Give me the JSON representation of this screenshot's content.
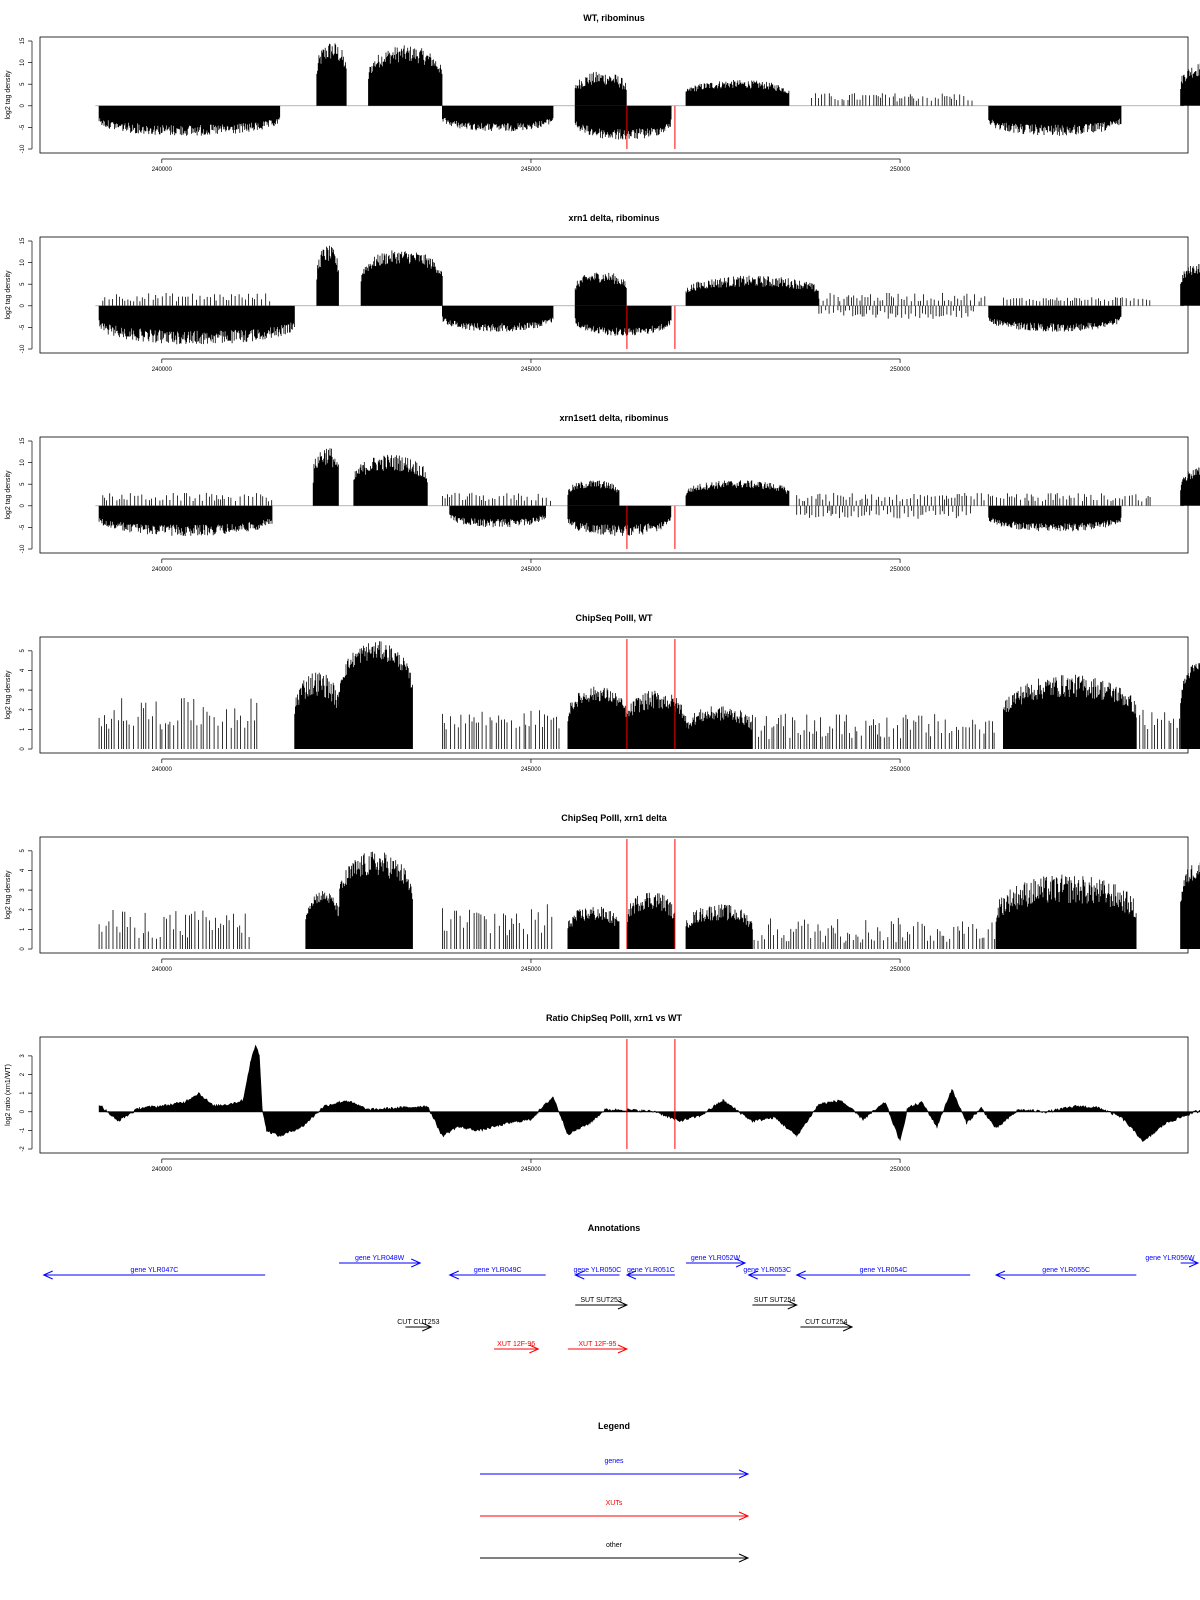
{
  "chart_data": [
    {
      "type": "bar",
      "title": "WT, ribominus",
      "ylabel": "log2 tag density",
      "xlim": [
        238350,
        253900
      ],
      "ylim": [
        -10,
        15
      ],
      "yticks": [
        -10,
        -5,
        0,
        5,
        10,
        15
      ],
      "xticks": [
        240000,
        245000,
        250000
      ],
      "markers_x": [
        246300,
        246950
      ],
      "series": [
        {
          "strand": "plus",
          "segments": [
            [
              242100,
              242500,
              8,
              15
            ],
            [
              242800,
              243800,
              8,
              14
            ],
            [
              245600,
              246300,
              3,
              8
            ],
            [
              247100,
              248500,
              3,
              6
            ],
            [
              253800,
              254350,
              5,
              10
            ]
          ],
          "sparse": [
            [
              248800,
              251000,
              1,
              3
            ]
          ]
        },
        {
          "strand": "minus",
          "segments": [
            [
              239150,
              241600,
              -3,
              -7
            ],
            [
              243800,
              245300,
              -3,
              -6
            ],
            [
              245600,
              246900,
              -4,
              -8
            ],
            [
              251200,
              253000,
              -3,
              -7
            ]
          ]
        }
      ]
    },
    {
      "type": "bar",
      "title": "xrn1 delta, ribominus",
      "ylabel": "log2 tag density",
      "xlim": [
        238350,
        253900
      ],
      "ylim": [
        -10,
        15
      ],
      "yticks": [
        -10,
        -5,
        0,
        5,
        10,
        15
      ],
      "xticks": [
        240000,
        245000,
        250000
      ],
      "markers_x": [
        246300,
        246950
      ],
      "series": [
        {
          "strand": "plus",
          "segments": [
            [
              242100,
              242400,
              8,
              14
            ],
            [
              242700,
              243800,
              8,
              13
            ],
            [
              245600,
              246300,
              4,
              8
            ],
            [
              247100,
              248900,
              3,
              7
            ],
            [
              253800,
              254350,
              6,
              10
            ]
          ],
          "sparse": [
            [
              239200,
              241500,
              1,
              3
            ],
            [
              248900,
              251200,
              1,
              3
            ],
            [
              251400,
              253400,
              1,
              2
            ]
          ]
        },
        {
          "strand": "minus",
          "segments": [
            [
              239150,
              241800,
              -4,
              -9
            ],
            [
              243800,
              245300,
              -3,
              -6
            ],
            [
              245600,
              246900,
              -4,
              -7
            ],
            [
              251200,
              253000,
              -3,
              -6
            ]
          ],
          "sparse": [
            [
              248900,
              251000,
              -1,
              -3
            ]
          ]
        }
      ]
    },
    {
      "type": "bar",
      "title": "xrn1set1 delta, ribominus",
      "ylabel": "log2 tag density",
      "xlim": [
        238350,
        253900
      ],
      "ylim": [
        -10,
        15
      ],
      "yticks": [
        -10,
        -5,
        0,
        5,
        10,
        15
      ],
      "xticks": [
        240000,
        245000,
        250000
      ],
      "markers_x": [
        246300,
        246950
      ],
      "series": [
        {
          "strand": "plus",
          "segments": [
            [
              242050,
              242400,
              7,
              14
            ],
            [
              242600,
              243600,
              6,
              12
            ],
            [
              245500,
              246200,
              3,
              6
            ],
            [
              247100,
              248500,
              3,
              6
            ],
            [
              253800,
              254350,
              5,
              9
            ]
          ],
          "sparse": [
            [
              239200,
              241500,
              1,
              3
            ],
            [
              243800,
              245300,
              1,
              3
            ],
            [
              248600,
              253400,
              1,
              3
            ]
          ]
        },
        {
          "strand": "minus",
          "segments": [
            [
              239150,
              241500,
              -3,
              -7
            ],
            [
              243900,
              245200,
              -2,
              -5
            ],
            [
              245500,
              246900,
              -3,
              -7
            ],
            [
              251200,
              253000,
              -3,
              -6
            ]
          ],
          "sparse": [
            [
              248600,
              251000,
              -1,
              -3
            ]
          ]
        }
      ]
    },
    {
      "type": "bar",
      "title": "ChipSeq PolII, WT",
      "ylabel": "log2 tag density",
      "xlim": [
        238350,
        253900
      ],
      "ylim": [
        0,
        5.5
      ],
      "yticks": [
        0,
        1,
        2,
        3,
        4,
        5
      ],
      "xticks": [
        240000,
        245000,
        250000
      ],
      "markers_x": [
        246300,
        246950
      ],
      "series": [
        {
          "strand": "plus",
          "segments": [
            [
              241800,
              242400,
              2,
              4
            ],
            [
              242400,
              243400,
              4,
              5.5
            ],
            [
              245500,
              246300,
              2,
              3.2
            ],
            [
              246300,
              247100,
              1.5,
              3
            ],
            [
              247100,
              248000,
              1,
              2.2
            ],
            [
              251400,
              253200,
              2,
              3.8
            ],
            [
              253800,
              254350,
              3.5,
              4.5
            ]
          ],
          "sparse": [
            [
              239150,
              241300,
              1,
              2.6
            ],
            [
              243800,
              245400,
              1,
              2
            ],
            [
              248000,
              251300,
              0.5,
              1.8
            ],
            [
              253200,
              253800,
              1,
              2
            ]
          ]
        }
      ]
    },
    {
      "type": "bar",
      "title": "ChipSeq PolII, xrn1 delta",
      "ylabel": "log2 tag density",
      "xlim": [
        238350,
        253900
      ],
      "ylim": [
        0,
        5.5
      ],
      "yticks": [
        0,
        1,
        2,
        3,
        4,
        5
      ],
      "xticks": [
        240000,
        245000,
        250000
      ],
      "markers_x": [
        246300,
        246950
      ],
      "series": [
        {
          "strand": "plus",
          "segments": [
            [
              241950,
              242400,
              2,
              3
            ],
            [
              242400,
              243400,
              3,
              5
            ],
            [
              245500,
              246200,
              1,
              2.2
            ],
            [
              246300,
              246950,
              1.5,
              3
            ],
            [
              247100,
              248000,
              1,
              2.3
            ],
            [
              251300,
              253200,
              1.5,
              3.8
            ],
            [
              253800,
              254350,
              3,
              4.6
            ]
          ],
          "sparse": [
            [
              239150,
              241200,
              0.5,
              2
            ],
            [
              243800,
              245300,
              0.5,
              2.3
            ],
            [
              248000,
              251300,
              0.3,
              1.6
            ]
          ]
        }
      ]
    },
    {
      "type": "area",
      "title": "Ratio ChipSeq PolII, xrn1 vs WT",
      "ylabel": "log2 ratio (xrn1/WT)",
      "xlim": [
        238350,
        253900
      ],
      "ylim": [
        -2,
        3.8
      ],
      "yticks": [
        -2,
        -1,
        0,
        1,
        2,
        3
      ],
      "xticks": [
        240000,
        245000,
        250000
      ],
      "markers_x": [
        246300,
        246950
      ],
      "x": [
        239150,
        239400,
        239700,
        240000,
        240300,
        240500,
        240700,
        240900,
        241100,
        241200,
        241270,
        241320,
        241360,
        241420,
        241600,
        241900,
        242200,
        242500,
        242800,
        243200,
        243600,
        243800,
        244000,
        244300,
        244700,
        245000,
        245300,
        245500,
        245800,
        246000,
        246300,
        246700,
        247000,
        247300,
        247600,
        248000,
        248300,
        248600,
        248900,
        249200,
        249500,
        249800,
        250000,
        250100,
        250300,
        250500,
        250700,
        250900,
        251100,
        251300,
        251600,
        252000,
        252400,
        252700,
        253000,
        253300,
        253600,
        254000,
        254350
      ],
      "y": [
        0.4,
        -0.5,
        0.2,
        0.3,
        0.5,
        1.0,
        0.3,
        0.4,
        0.6,
        2.6,
        3.6,
        3.0,
        0.2,
        -1.0,
        -1.3,
        -0.8,
        0.3,
        0.6,
        0.1,
        0.2,
        0.3,
        -1.3,
        -0.8,
        -1.0,
        -0.6,
        -0.4,
        0.8,
        -1.2,
        -0.6,
        0.1,
        0.1,
        0.0,
        -0.5,
        -0.2,
        0.6,
        -0.5,
        -0.3,
        -1.3,
        0.4,
        0.6,
        -0.4,
        0.5,
        -1.6,
        0.2,
        0.5,
        -0.8,
        1.2,
        -0.6,
        0.2,
        -0.9,
        0.1,
        0.0,
        0.3,
        0.2,
        -0.3,
        -1.6,
        -0.6,
        0.0,
        0.1
      ]
    },
    {
      "type": "table",
      "title": "Annotations",
      "xlim": [
        238350,
        253900
      ],
      "features": [
        {
          "label": "gene YLR047C",
          "x1": 238400,
          "x2": 241400,
          "row": 0,
          "dir": "left",
          "color": "#0000ff"
        },
        {
          "label": "gene YLR048W",
          "x1": 242400,
          "x2": 243500,
          "row": -1,
          "dir": "right",
          "color": "#0000ff"
        },
        {
          "label": "gene YLR049C",
          "x1": 243900,
          "x2": 245200,
          "row": 0,
          "dir": "left",
          "color": "#0000ff"
        },
        {
          "label": "gene YLR050C",
          "x1": 245600,
          "x2": 246200,
          "row": 0,
          "dir": "left",
          "color": "#0000ff"
        },
        {
          "label": "gene YLR051C",
          "x1": 246300,
          "x2": 246950,
          "row": 0,
          "dir": "left",
          "color": "#0000ff"
        },
        {
          "label": "gene YLR052W",
          "x1": 247100,
          "x2": 247900,
          "row": -1,
          "dir": "right",
          "color": "#0000ff"
        },
        {
          "label": "gene YLR053C",
          "x1": 247950,
          "x2": 248450,
          "row": 0,
          "dir": "left",
          "color": "#0000ff"
        },
        {
          "label": "gene YLR054C",
          "x1": 248600,
          "x2": 250950,
          "row": 0,
          "dir": "left",
          "color": "#0000ff"
        },
        {
          "label": "gene YLR055C",
          "x1": 251300,
          "x2": 253200,
          "row": 0,
          "dir": "left",
          "color": "#0000ff"
        },
        {
          "label": "gene YLR056W",
          "x1": 253800,
          "x2": 254450,
          "row": -1,
          "dir": "right",
          "color": "#0000ff"
        },
        {
          "label": "SUT SUT253",
          "x1": 245600,
          "x2": 246300,
          "row": 1,
          "dir": "right",
          "color": "#000000"
        },
        {
          "label": "SUT SUT254",
          "x1": 248000,
          "x2": 248600,
          "row": 1,
          "dir": "right",
          "color": "#000000"
        },
        {
          "label": "CUT CUT253",
          "x1": 243300,
          "x2": 243650,
          "row": 2,
          "dir": "right",
          "color": "#000000"
        },
        {
          "label": "CUT CUT254",
          "x1": 248650,
          "x2": 249350,
          "row": 2,
          "dir": "right",
          "color": "#000000"
        },
        {
          "label": "XUT 12F-96",
          "x1": 244500,
          "x2": 245100,
          "row": 3,
          "dir": "right",
          "color": "#ff0000"
        },
        {
          "label": "XUT 12F-95",
          "x1": 245500,
          "x2": 246300,
          "row": 3,
          "dir": "right",
          "color": "#ff0000"
        }
      ]
    }
  ],
  "legend": {
    "title": "Legend",
    "items": [
      {
        "label": "genes",
        "color": "#0000ff"
      },
      {
        "label": "XUTs",
        "color": "#ff0000"
      },
      {
        "label": "other",
        "color": "#000000"
      }
    ]
  },
  "colors": {
    "bars": "#000000",
    "marker": "#ff0000",
    "gene": "#0000ff",
    "xut": "#ff0000",
    "other": "#000000"
  }
}
